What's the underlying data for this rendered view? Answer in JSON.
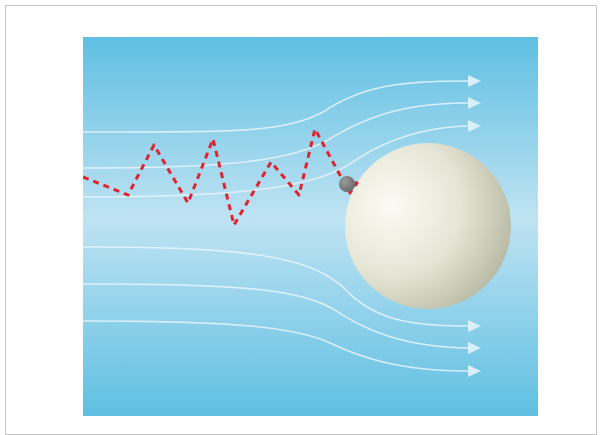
{
  "diagram": {
    "colors": {
      "fluid_dark": "#5fbfe2",
      "fluid_light": "#bfe3f3",
      "streamline": "#e8f5fb",
      "arrowhead": "#d9eff9",
      "path": "#e0242f",
      "particle": "#6a6a6a",
      "sphere_light": "#fbfbf4",
      "sphere_mid": "#e6e6d6",
      "sphere_dark": "#b9bba6",
      "frame_border": "#c4c4c4"
    },
    "elements": [
      "fluid-background",
      "streamlines",
      "random-walk-path",
      "diffusing-particle",
      "collector-sphere"
    ]
  }
}
